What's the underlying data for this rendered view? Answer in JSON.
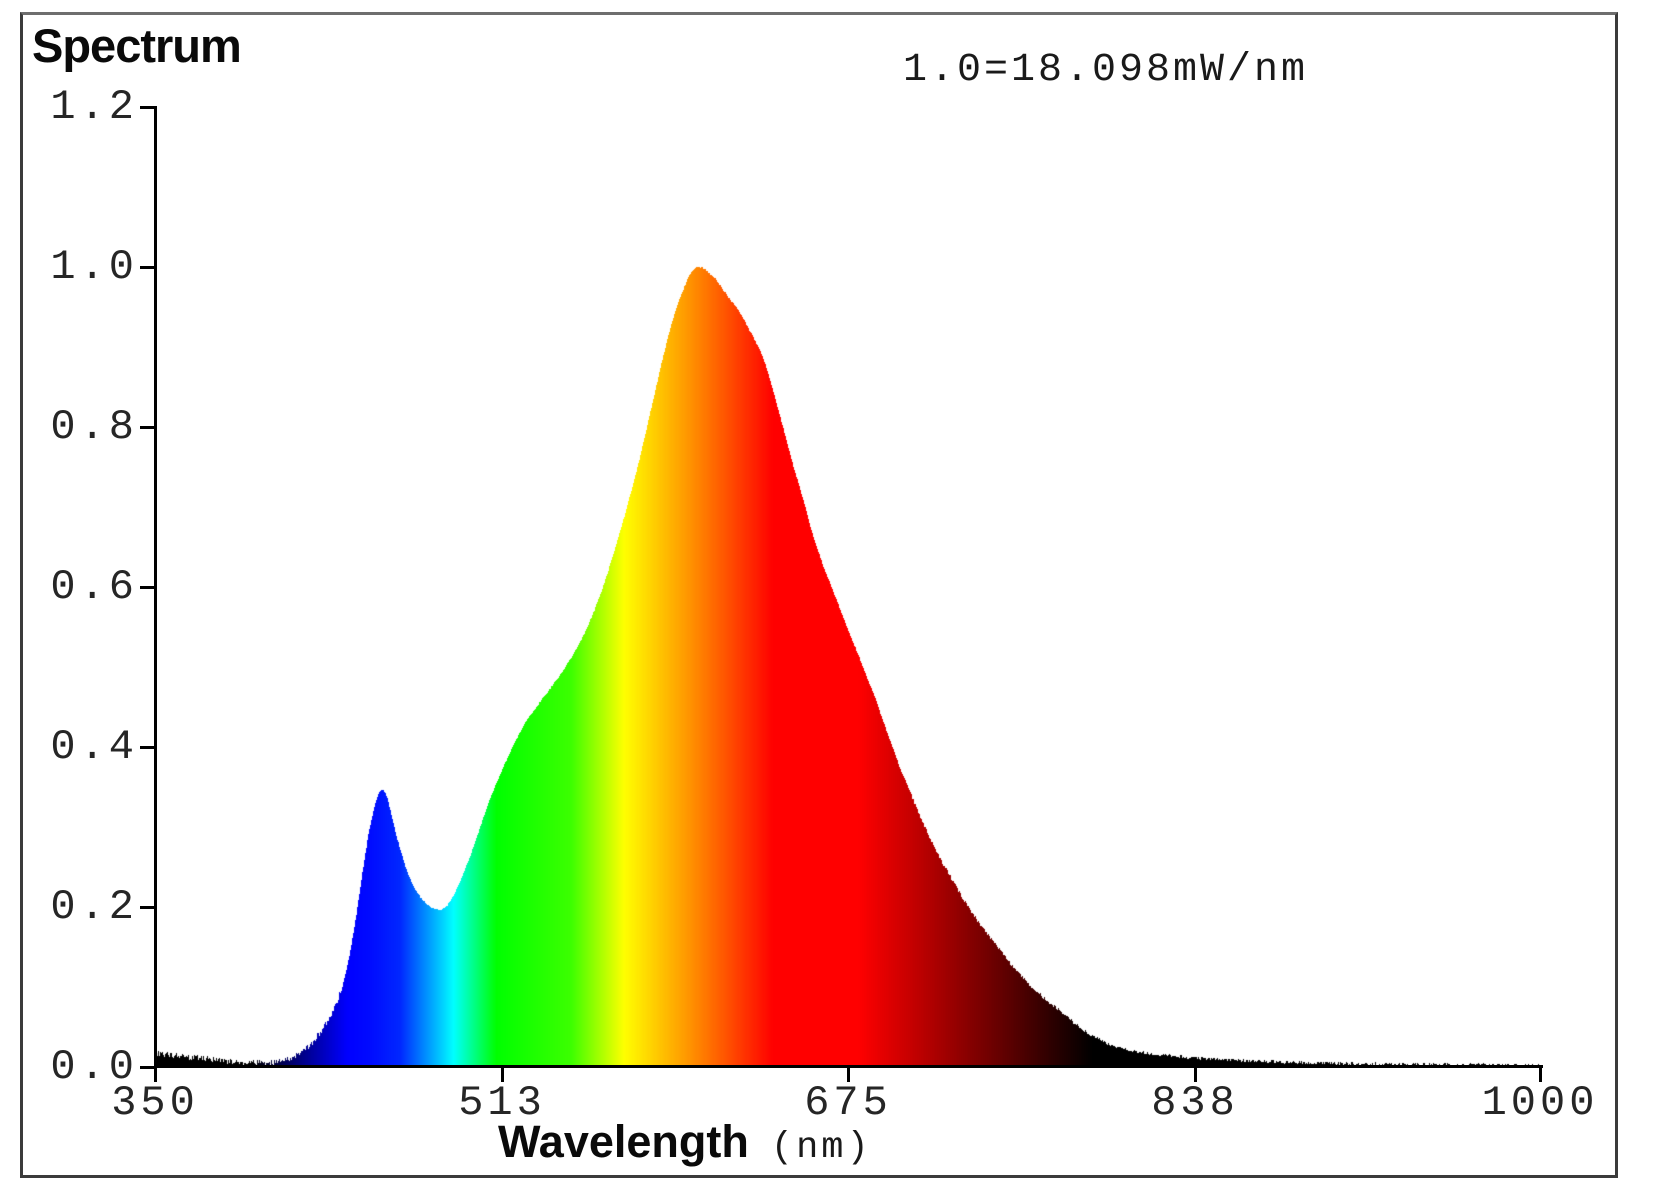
{
  "colors": {
    "background": "#ffffff",
    "axis": "#000000",
    "tick_label": "#262626",
    "title": "#0a0a0a",
    "annotation": "#1a1a1a",
    "frame": "#3b3b3b",
    "frame_top": "#6e6e6e"
  },
  "chart_data": {
    "type": "area",
    "title": "Spectrum",
    "annotation": "1.0=18.098mW/nm",
    "xlabel": "Wavelength",
    "xunit": "(nm)",
    "ylabel": "",
    "legend": "none",
    "grid": false,
    "x_axis": {
      "min": 350,
      "max": 1000,
      "tick_values": [
        350,
        513,
        675,
        838,
        1000
      ],
      "tick_labels": [
        "350",
        "513",
        "675",
        "838",
        "1000"
      ]
    },
    "y_axis": {
      "min": 0.0,
      "max": 1.2,
      "tick_values": [
        1.2,
        1.0,
        0.8,
        0.6,
        0.4,
        0.2,
        0.0
      ],
      "tick_labels": [
        "1.2",
        "1.0",
        "0.8",
        "0.6",
        "0.4",
        "0.2",
        "0.0"
      ]
    },
    "features": {
      "blue_peak": {
        "wavelength_nm": 456,
        "value": 0.347
      },
      "dip": {
        "wavelength_nm": 483,
        "value": 0.196
      },
      "main_peak": {
        "wavelength_nm": 603,
        "value": 1.0
      },
      "normalization": "1.0 = 18.098 mW/nm"
    },
    "spectrum_points": [
      [
        350,
        0.018
      ],
      [
        353,
        0.0165
      ],
      [
        356,
        0.016
      ],
      [
        359,
        0.0145
      ],
      [
        362,
        0.014
      ],
      [
        365,
        0.0125
      ],
      [
        368,
        0.012
      ],
      [
        371,
        0.011
      ],
      [
        374,
        0.0105
      ],
      [
        377,
        0.0095
      ],
      [
        380,
        0.0085
      ],
      [
        384,
        0.0075
      ],
      [
        388,
        0.0065
      ],
      [
        392,
        0.0058
      ],
      [
        396,
        0.0052
      ],
      [
        400,
        0.005
      ],
      [
        404,
        0.0055
      ],
      [
        408,
        0.0068
      ],
      [
        412,
        0.0095
      ],
      [
        416,
        0.014
      ],
      [
        420,
        0.021
      ],
      [
        424,
        0.032
      ],
      [
        428,
        0.046
      ],
      [
        432,
        0.063
      ],
      [
        435,
        0.08
      ],
      [
        438,
        0.103
      ],
      [
        441,
        0.138
      ],
      [
        444,
        0.185
      ],
      [
        447,
        0.24
      ],
      [
        450,
        0.292
      ],
      [
        453,
        0.328
      ],
      [
        455,
        0.344
      ],
      [
        457,
        0.347
      ],
      [
        459,
        0.335
      ],
      [
        461,
        0.312
      ],
      [
        463,
        0.29
      ],
      [
        466,
        0.262
      ],
      [
        469,
        0.238
      ],
      [
        472,
        0.221
      ],
      [
        475,
        0.21
      ],
      [
        478,
        0.202
      ],
      [
        481,
        0.197
      ],
      [
        484,
        0.196
      ],
      [
        487,
        0.202
      ],
      [
        490,
        0.214
      ],
      [
        493,
        0.232
      ],
      [
        496,
        0.252
      ],
      [
        499,
        0.273
      ],
      [
        502,
        0.297
      ],
      [
        505,
        0.32
      ],
      [
        508,
        0.342
      ],
      [
        511,
        0.361
      ],
      [
        514,
        0.379
      ],
      [
        517,
        0.397
      ],
      [
        520,
        0.413
      ],
      [
        523,
        0.428
      ],
      [
        526,
        0.44
      ],
      [
        529,
        0.451
      ],
      [
        532,
        0.462
      ],
      [
        535,
        0.472
      ],
      [
        538,
        0.483
      ],
      [
        541,
        0.494
      ],
      [
        544,
        0.507
      ],
      [
        547,
        0.52
      ],
      [
        550,
        0.535
      ],
      [
        553,
        0.552
      ],
      [
        556,
        0.571
      ],
      [
        559,
        0.592
      ],
      [
        562,
        0.616
      ],
      [
        565,
        0.642
      ],
      [
        568,
        0.669
      ],
      [
        571,
        0.697
      ],
      [
        574,
        0.727
      ],
      [
        577,
        0.758
      ],
      [
        580,
        0.792
      ],
      [
        583,
        0.827
      ],
      [
        586,
        0.862
      ],
      [
        589,
        0.896
      ],
      [
        592,
        0.927
      ],
      [
        595,
        0.953
      ],
      [
        598,
        0.974
      ],
      [
        601,
        0.992
      ],
      [
        604,
        1.0
      ],
      [
        607,
        0.999
      ],
      [
        610,
        0.992
      ],
      [
        613,
        0.985
      ],
      [
        616,
        0.973
      ],
      [
        619,
        0.962
      ],
      [
        622,
        0.952
      ],
      [
        625,
        0.94
      ],
      [
        628,
        0.925
      ],
      [
        631,
        0.91
      ],
      [
        634,
        0.895
      ],
      [
        637,
        0.873
      ],
      [
        640,
        0.845
      ],
      [
        643,
        0.815
      ],
      [
        646,
        0.785
      ],
      [
        649,
        0.755
      ],
      [
        652,
        0.728
      ],
      [
        655,
        0.7
      ],
      [
        658,
        0.67
      ],
      [
        661,
        0.645
      ],
      [
        664,
        0.622
      ],
      [
        667,
        0.602
      ],
      [
        670,
        0.582
      ],
      [
        673,
        0.56
      ],
      [
        676,
        0.54
      ],
      [
        679,
        0.521
      ],
      [
        682,
        0.5
      ],
      [
        685,
        0.48
      ],
      [
        688,
        0.46
      ],
      [
        691,
        0.436
      ],
      [
        694,
        0.414
      ],
      [
        697,
        0.392
      ],
      [
        700,
        0.37
      ],
      [
        703,
        0.352
      ],
      [
        706,
        0.332
      ],
      [
        709,
        0.313
      ],
      [
        712,
        0.295
      ],
      [
        715,
        0.278
      ],
      [
        719,
        0.257
      ],
      [
        723,
        0.238
      ],
      [
        727,
        0.22
      ],
      [
        731,
        0.202
      ],
      [
        735,
        0.186
      ],
      [
        739,
        0.171
      ],
      [
        743,
        0.158
      ],
      [
        747,
        0.144
      ],
      [
        751,
        0.13
      ],
      [
        755,
        0.118
      ],
      [
        759,
        0.106
      ],
      [
        763,
        0.0955
      ],
      [
        767,
        0.0865
      ],
      [
        771,
        0.0775
      ],
      [
        775,
        0.069
      ],
      [
        779,
        0.0595
      ],
      [
        783,
        0.051
      ],
      [
        787,
        0.0435
      ],
      [
        791,
        0.037
      ],
      [
        795,
        0.0315
      ],
      [
        799,
        0.027
      ],
      [
        803,
        0.0235
      ],
      [
        808,
        0.0205
      ],
      [
        813,
        0.0185
      ],
      [
        818,
        0.0165
      ],
      [
        824,
        0.0148
      ],
      [
        830,
        0.0132
      ],
      [
        836,
        0.0118
      ],
      [
        842,
        0.0106
      ],
      [
        848,
        0.0096
      ],
      [
        855,
        0.0086
      ],
      [
        862,
        0.0078
      ],
      [
        870,
        0.007
      ],
      [
        878,
        0.0063
      ],
      [
        886,
        0.0057
      ],
      [
        895,
        0.0051
      ],
      [
        905,
        0.0046
      ],
      [
        915,
        0.0041
      ],
      [
        925,
        0.0037
      ],
      [
        940,
        0.0033
      ],
      [
        955,
        0.0029
      ],
      [
        970,
        0.0026
      ],
      [
        985,
        0.0023
      ],
      [
        1000,
        0.002
      ]
    ],
    "spectral_colormap": [
      {
        "wl": 395,
        "rgb": [
          0,
          0,
          0
        ]
      },
      {
        "wl": 440,
        "rgb": [
          0,
          0,
          255
        ]
      },
      {
        "wl": 450,
        "rgb": [
          0,
          10,
          255
        ]
      },
      {
        "wl": 465,
        "rgb": [
          0,
          40,
          255
        ]
      },
      {
        "wl": 490,
        "rgb": [
          0,
          255,
          255
        ]
      },
      {
        "wl": 510,
        "rgb": [
          0,
          255,
          0
        ]
      },
      {
        "wl": 545,
        "rgb": [
          60,
          255,
          0
        ]
      },
      {
        "wl": 570,
        "rgb": [
          255,
          255,
          0
        ]
      },
      {
        "wl": 600,
        "rgb": [
          255,
          150,
          0
        ]
      },
      {
        "wl": 640,
        "rgb": [
          255,
          0,
          0
        ]
      },
      {
        "wl": 680,
        "rgb": [
          255,
          0,
          0
        ]
      },
      {
        "wl": 790,
        "rgb": [
          0,
          0,
          0
        ]
      },
      {
        "wl": 1000,
        "rgb": [
          0,
          0,
          0
        ]
      }
    ],
    "noise_regions": [
      {
        "from": 350,
        "to": 438,
        "amplitude": 0.0035
      },
      {
        "from": 438,
        "to": 705,
        "amplitude": 0.0008
      },
      {
        "from": 705,
        "to": 1000,
        "amplitude": 0.002
      }
    ]
  }
}
